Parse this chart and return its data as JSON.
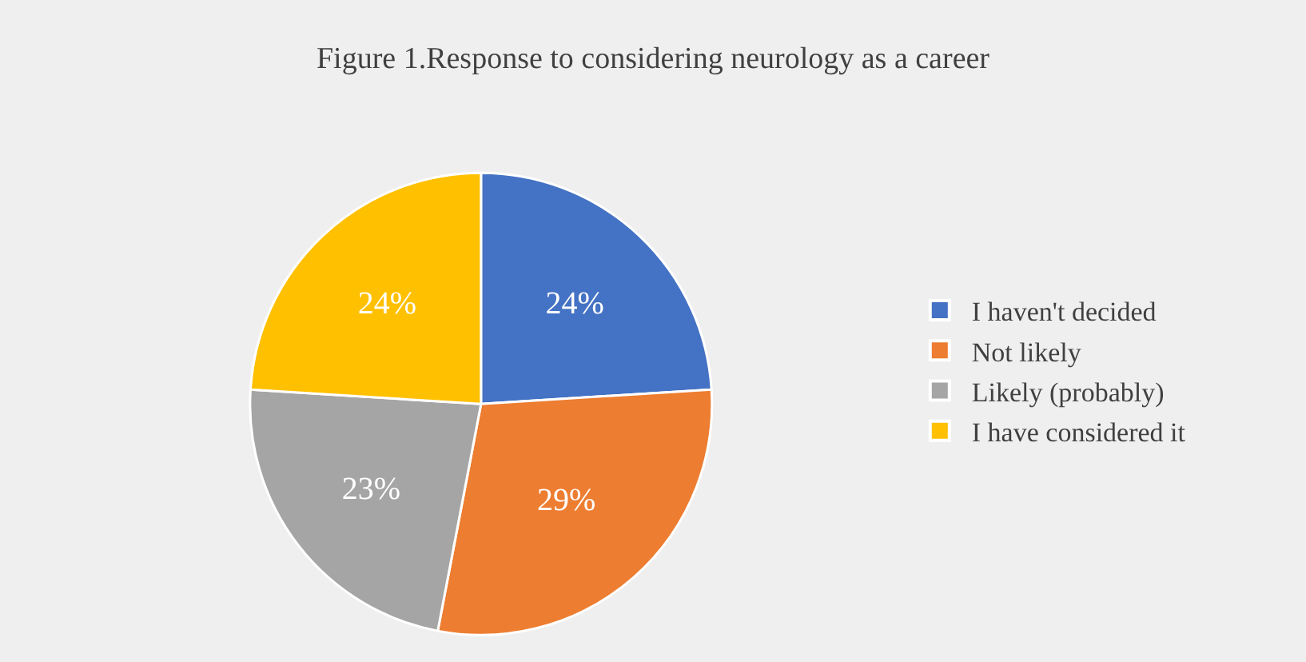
{
  "chart_data": {
    "type": "pie",
    "title": "Figure 1.Response to considering neurology as a career",
    "categories": [
      "I haven't decided",
      "Not likely",
      "Likely (probably)",
      "I have considered it"
    ],
    "values": [
      24,
      29,
      23,
      24
    ],
    "colors": [
      "#4472c4",
      "#ed7d31",
      "#a5a5a5",
      "#ffc000"
    ],
    "value_labels": [
      "24%",
      "29%",
      "23%",
      "24%"
    ],
    "legend": "right"
  }
}
